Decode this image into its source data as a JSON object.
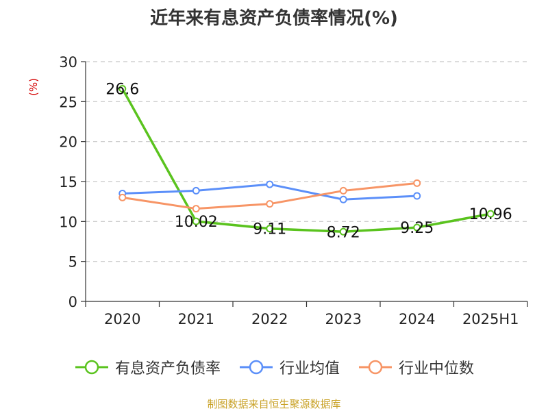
{
  "chart_data": {
    "type": "line",
    "title": "近年来有息资产负债率情况(%)",
    "ylabel": "(%)",
    "xlabel": "",
    "categories": [
      "2020",
      "2021",
      "2022",
      "2023",
      "2024",
      "2025H1"
    ],
    "ylim": [
      0,
      30
    ],
    "yticks": [
      0,
      5,
      10,
      15,
      20,
      25,
      30
    ],
    "grid": true,
    "legend_position": "bottom",
    "series": [
      {
        "name": "有息资产负债率",
        "color": "#5ac31e",
        "values": [
          26.6,
          10.02,
          9.11,
          8.72,
          9.25,
          10.96
        ],
        "labels": [
          "26.6",
          "10.02",
          "9.11",
          "8.72",
          "9.25",
          "10.96"
        ]
      },
      {
        "name": "行业均值",
        "color": "#5b8ff9",
        "values": [
          13.5,
          13.85,
          14.65,
          12.75,
          13.2,
          null
        ]
      },
      {
        "name": "行业中位数",
        "color": "#f79566",
        "values": [
          13.0,
          11.6,
          12.2,
          13.85,
          14.8,
          null
        ]
      }
    ],
    "source": "制图数据来自恒生聚源数据库"
  }
}
